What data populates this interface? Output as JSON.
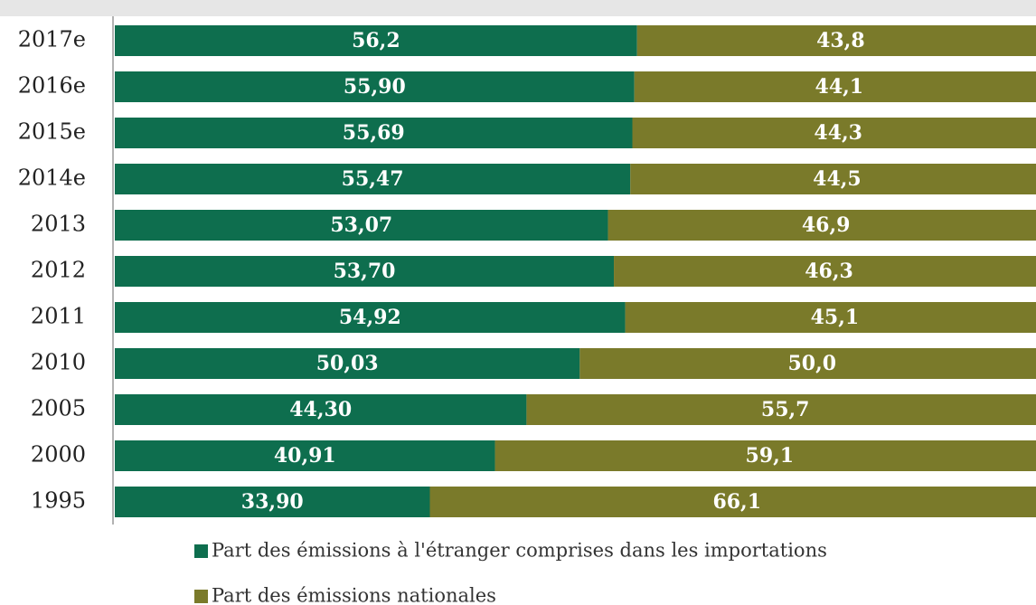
{
  "chart_data": {
    "type": "stacked-barh",
    "categories": [
      "2017e",
      "2016e",
      "2015e",
      "2014e",
      "2013",
      "2012",
      "2011",
      "2010",
      "2005",
      "2000",
      "1995"
    ],
    "series": [
      {
        "name": "Part des émissions à l'étranger comprises dans les importations",
        "color": "#0e6e4e",
        "values": [
          56.2,
          55.9,
          55.69,
          55.47,
          53.07,
          53.7,
          54.92,
          50.03,
          44.3,
          40.91,
          33.9
        ],
        "value_labels": [
          "56,2",
          "55,90",
          "55,69",
          "55,47",
          "53,07",
          "53,70",
          "54,92",
          "50,03",
          "44,30",
          "40,91",
          "33,90"
        ]
      },
      {
        "name": "Part des émissions nationales",
        "color": "#7a7a2a",
        "values": [
          43.8,
          44.1,
          44.3,
          44.5,
          46.9,
          46.3,
          45.1,
          50.0,
          55.7,
          59.1,
          66.1
        ],
        "value_labels": [
          "43,8",
          "44,1",
          "44,3",
          "44,5",
          "46,9",
          "46,3",
          "45,1",
          "50,0",
          "55,7",
          "59,1",
          "66,1"
        ]
      }
    ],
    "xlim": [
      0,
      100
    ]
  }
}
